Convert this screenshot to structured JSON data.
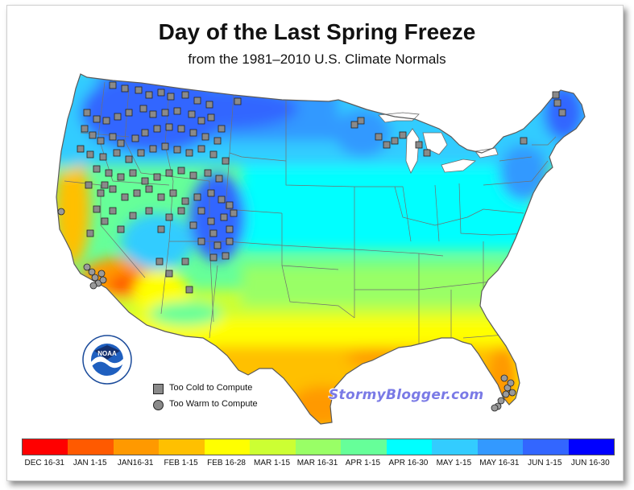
{
  "title": "Day of the Last Spring Freeze",
  "subtitle": "from the 1981–2010 U.S. Climate Normals",
  "logo": {
    "text": "NOAA",
    "ring_text": "NATIONAL OCEANIC AND ATMOSPHERIC ADMINISTRATION · U.S. DEPARTMENT OF COMMERCE"
  },
  "legend": {
    "too_cold": "Too Cold to Compute",
    "too_warm": "Too Warm to Compute"
  },
  "watermark": "StormyBlogger.com",
  "colorbar": [
    {
      "label": "DEC 16-31",
      "color": "#ff0000"
    },
    {
      "label": "JAN 1-15",
      "color": "#ff5a00"
    },
    {
      "label": "JAN16-31",
      "color": "#ff9900"
    },
    {
      "label": "FEB 1-15",
      "color": "#ffc000"
    },
    {
      "label": "FEB 16-28",
      "color": "#ffff00"
    },
    {
      "label": "MAR 1-15",
      "color": "#ccff33"
    },
    {
      "label": "MAR 16-31",
      "color": "#99ff66"
    },
    {
      "label": "APR 1-15",
      "color": "#66ff99"
    },
    {
      "label": "APR 16-30",
      "color": "#00ffff"
    },
    {
      "label": "MAY 1-15",
      "color": "#33ccff"
    },
    {
      "label": "MAY 16-31",
      "color": "#3399ff"
    },
    {
      "label": "JUN 1-15",
      "color": "#3366ff"
    },
    {
      "label": "JUN 16-30",
      "color": "#0000ff"
    }
  ]
}
